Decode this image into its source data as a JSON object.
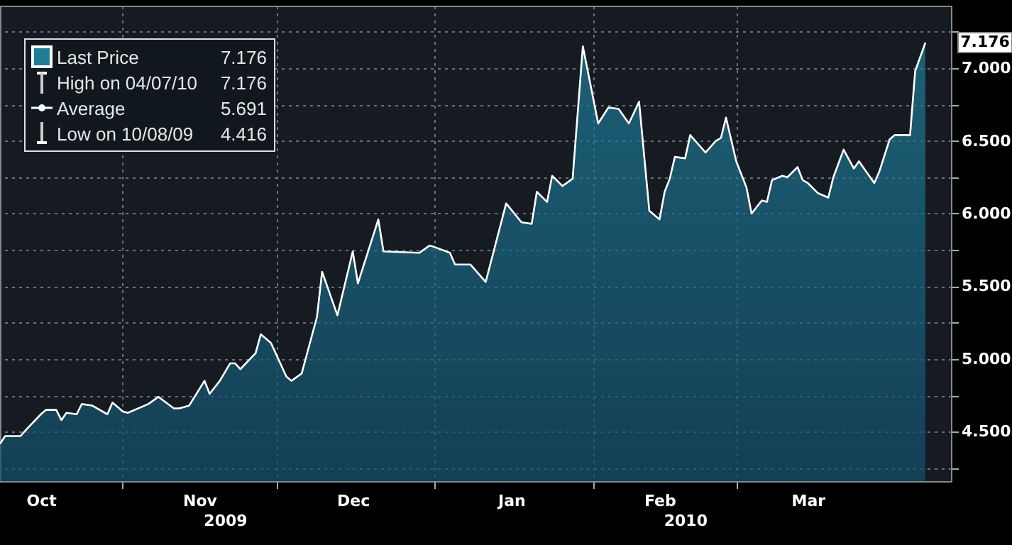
{
  "chart_data": {
    "type": "area",
    "x": [
      "2009-10-08",
      "2009-10-09",
      "2009-10-12",
      "2009-10-13",
      "2009-10-16",
      "2009-10-17",
      "2009-10-19",
      "2009-10-20",
      "2009-10-21",
      "2009-10-23",
      "2009-10-24",
      "2009-10-26",
      "2009-10-29",
      "2009-10-30",
      "2009-11-01",
      "2009-11-02",
      "2009-11-06",
      "2009-11-08",
      "2009-11-11",
      "2009-11-12",
      "2009-11-14",
      "2009-11-17",
      "2009-11-18",
      "2009-11-20",
      "2009-11-22",
      "2009-11-23",
      "2009-11-24",
      "2009-11-27",
      "2009-11-28",
      "2009-11-30",
      "2009-12-03",
      "2009-12-04",
      "2009-12-06",
      "2009-12-07",
      "2009-12-09",
      "2009-12-10",
      "2009-12-13",
      "2009-12-16",
      "2009-12-17",
      "2009-12-21",
      "2009-12-22",
      "2009-12-29",
      "2009-12-31",
      "2010-01-01",
      "2010-01-04",
      "2010-01-05",
      "2010-01-08",
      "2010-01-11",
      "2010-01-15",
      "2010-01-18",
      "2010-01-20",
      "2010-01-21",
      "2010-01-23",
      "2010-01-24",
      "2010-01-26",
      "2010-01-28",
      "2010-01-30",
      "2010-02-02",
      "2010-02-04",
      "2010-02-06",
      "2010-02-08",
      "2010-02-10",
      "2010-02-12",
      "2010-02-14",
      "2010-02-15",
      "2010-02-16",
      "2010-02-17",
      "2010-02-19",
      "2010-02-20",
      "2010-02-22",
      "2010-02-23",
      "2010-02-25",
      "2010-02-26",
      "2010-02-27",
      "2010-03-01",
      "2010-03-02",
      "2010-03-03",
      "2010-03-04",
      "2010-03-06",
      "2010-03-07",
      "2010-03-08",
      "2010-03-10",
      "2010-03-11",
      "2010-03-13",
      "2010-03-14",
      "2010-03-15",
      "2010-03-17",
      "2010-03-19",
      "2010-03-20",
      "2010-03-22",
      "2010-03-24",
      "2010-03-25",
      "2010-03-28",
      "2010-03-29",
      "2010-03-31",
      "2010-04-01",
      "2010-04-04",
      "2010-04-05",
      "2010-04-07"
    ],
    "series": [
      {
        "name": "Last Price",
        "color": "#1e7d99",
        "values": [
          4.416,
          4.47,
          4.47,
          4.51,
          4.62,
          4.65,
          4.65,
          4.58,
          4.63,
          4.62,
          4.69,
          4.68,
          4.62,
          4.7,
          4.64,
          4.63,
          4.69,
          4.74,
          4.66,
          4.66,
          4.68,
          4.85,
          4.76,
          4.85,
          4.97,
          4.97,
          4.93,
          5.04,
          5.17,
          5.11,
          4.88,
          4.85,
          4.9,
          5.03,
          5.29,
          5.6,
          5.3,
          5.74,
          5.52,
          5.96,
          5.74,
          5.73,
          5.78,
          5.77,
          5.73,
          5.65,
          5.65,
          5.53,
          6.07,
          5.94,
          5.93,
          6.15,
          6.08,
          6.26,
          6.19,
          6.24,
          7.15,
          6.62,
          6.73,
          6.72,
          6.62,
          6.77,
          6.02,
          5.96,
          6.15,
          6.24,
          6.39,
          6.38,
          6.54,
          6.46,
          6.42,
          6.5,
          6.52,
          6.66,
          6.36,
          6.27,
          6.18,
          6.0,
          6.09,
          6.08,
          6.23,
          6.26,
          6.25,
          6.32,
          6.23,
          6.21,
          6.14,
          6.11,
          6.25,
          6.44,
          6.31,
          6.36,
          6.21,
          6.29,
          6.51,
          6.54,
          6.54,
          6.98,
          7.176
        ]
      }
    ],
    "xlim": [
      "2009-10-08",
      "2010-04-12"
    ],
    "xticks": [
      {
        "value": "2009-11-01",
        "label": null
      },
      {
        "value": "2009-12-01",
        "label": null
      },
      {
        "value": "2010-01-01",
        "label": null
      },
      {
        "value": "2010-02-01",
        "label": null
      },
      {
        "value": "2010-03-01",
        "label": null
      },
      {
        "value": "2009-10-16",
        "label": "Oct"
      },
      {
        "value": "2009-11-16",
        "label": "Nov"
      },
      {
        "value": "2009-12-16",
        "label": "Dec"
      },
      {
        "value": "2010-01-16",
        "label": "Jan"
      },
      {
        "value": "2010-02-14",
        "label": "Feb"
      },
      {
        "value": "2010-03-15",
        "label": "Mar"
      }
    ],
    "x2lim": [
      "2009-10-08",
      "2010-04-12"
    ],
    "x2ticks": [
      {
        "value": "2009-11-21",
        "label": "2009"
      },
      {
        "value": "2010-02-19",
        "label": "2010"
      }
    ],
    "ylim": [
      4.16,
      7.43
    ],
    "yticks": [
      {
        "value": 4.25,
        "label": null
      },
      {
        "value": 4.5,
        "label": "4.500"
      },
      {
        "value": 4.75,
        "label": null
      },
      {
        "value": 5,
        "label": "5.000"
      },
      {
        "value": 5.25,
        "label": null
      },
      {
        "value": 5.5,
        "label": "5.500"
      },
      {
        "value": 5.75,
        "label": null
      },
      {
        "value": 6,
        "label": "6.000"
      },
      {
        "value": 6.25,
        "label": null
      },
      {
        "value": 6.5,
        "label": "6.500"
      },
      {
        "value": 6.75,
        "label": null
      },
      {
        "value": 7,
        "label": "7.000"
      },
      {
        "value": 7.25,
        "label": null
      }
    ],
    "annotations": [
      "7.176",
      "High on 04/07/10 7.176",
      "Average 5.691",
      "Low on 10/08/09 4.416",
      "7.176"
    ],
    "grid": true,
    "legend": "top left"
  }
}
